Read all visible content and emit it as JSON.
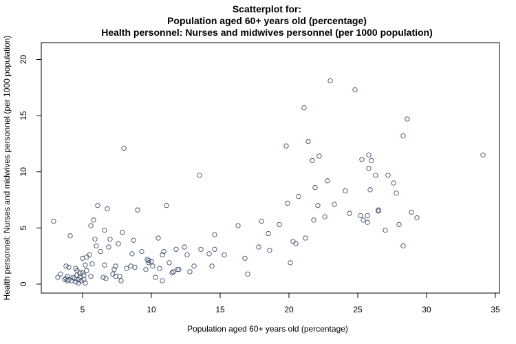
{
  "chart_data": {
    "type": "scatter",
    "title_lines": [
      "Scatterplot for:",
      "Population aged 60+ years old (percentage)",
      "Health personnel: Nurses and midwives personnel (per 1000 population)"
    ],
    "xlabel": "Population aged 60+ years old (percentage)",
    "ylabel": "Health personnel: Nurses and midwives personnel (per 1000 population)",
    "xlim": [
      2.0,
      35.3
    ],
    "ylim": [
      -0.8,
      21.5
    ],
    "xticks": [
      5,
      10,
      15,
      20,
      25,
      30,
      35
    ],
    "yticks": [
      0,
      5,
      10,
      15,
      20
    ],
    "marker_color": "#3a4a66",
    "points": [
      [
        2.9,
        5.6
      ],
      [
        3.2,
        0.6
      ],
      [
        3.4,
        0.9
      ],
      [
        3.7,
        0.4
      ],
      [
        3.8,
        0.5
      ],
      [
        3.8,
        1.6
      ],
      [
        3.9,
        0.3
      ],
      [
        3.9,
        0.7
      ],
      [
        4.0,
        1.5
      ],
      [
        4.0,
        0.4
      ],
      [
        4.1,
        4.3
      ],
      [
        4.2,
        0.3
      ],
      [
        4.3,
        0.6
      ],
      [
        4.4,
        0.5
      ],
      [
        4.5,
        1.4
      ],
      [
        4.5,
        0.2
      ],
      [
        4.6,
        1.2
      ],
      [
        4.6,
        0.8
      ],
      [
        4.7,
        0.4
      ],
      [
        4.7,
        0.1
      ],
      [
        4.8,
        1.0
      ],
      [
        4.8,
        0.6
      ],
      [
        4.9,
        0.3
      ],
      [
        5.0,
        2.3
      ],
      [
        5.0,
        1.0
      ],
      [
        5.1,
        0.8
      ],
      [
        5.1,
        0.4
      ],
      [
        5.2,
        1.7
      ],
      [
        5.2,
        0.1
      ],
      [
        5.3,
        2.4
      ],
      [
        5.3,
        1.2
      ],
      [
        5.5,
        2.6
      ],
      [
        5.6,
        0.7
      ],
      [
        5.6,
        5.2
      ],
      [
        5.7,
        1.8
      ],
      [
        5.8,
        5.7
      ],
      [
        5.9,
        4.0
      ],
      [
        6.0,
        3.4
      ],
      [
        6.1,
        7.0
      ],
      [
        6.3,
        2.9
      ],
      [
        6.5,
        0.6
      ],
      [
        6.6,
        1.7
      ],
      [
        6.6,
        4.8
      ],
      [
        6.7,
        0.5
      ],
      [
        6.8,
        6.7
      ],
      [
        6.9,
        3.3
      ],
      [
        7.0,
        4.0
      ],
      [
        7.2,
        0.9
      ],
      [
        7.3,
        1.3
      ],
      [
        7.4,
        0.7
      ],
      [
        7.4,
        1.6
      ],
      [
        7.6,
        3.6
      ],
      [
        7.7,
        0.7
      ],
      [
        7.8,
        0.3
      ],
      [
        7.9,
        4.6
      ],
      [
        8.0,
        12.1
      ],
      [
        8.2,
        1.4
      ],
      [
        8.5,
        1.6
      ],
      [
        8.6,
        2.7
      ],
      [
        8.7,
        3.9
      ],
      [
        8.8,
        1.5
      ],
      [
        9.0,
        6.6
      ],
      [
        9.3,
        2.9
      ],
      [
        9.6,
        1.3
      ],
      [
        9.7,
        2.2
      ],
      [
        9.8,
        2.1
      ],
      [
        9.8,
        1.9
      ],
      [
        10.0,
        2.0
      ],
      [
        10.1,
        1.6
      ],
      [
        10.3,
        0.6
      ],
      [
        10.5,
        4.1
      ],
      [
        10.6,
        1.4
      ],
      [
        10.8,
        2.6
      ],
      [
        10.8,
        0.3
      ],
      [
        10.9,
        2.9
      ],
      [
        11.1,
        7.0
      ],
      [
        11.3,
        1.9
      ],
      [
        11.5,
        1.0
      ],
      [
        11.6,
        1.1
      ],
      [
        11.8,
        3.1
      ],
      [
        11.9,
        1.3
      ],
      [
        12.0,
        1.3
      ],
      [
        12.4,
        3.3
      ],
      [
        12.6,
        2.6
      ],
      [
        12.8,
        1.1
      ],
      [
        13.1,
        1.6
      ],
      [
        13.5,
        9.7
      ],
      [
        13.6,
        3.1
      ],
      [
        14.2,
        2.7
      ],
      [
        14.4,
        1.6
      ],
      [
        14.6,
        4.4
      ],
      [
        14.6,
        3.1
      ],
      [
        15.3,
        2.6
      ],
      [
        16.3,
        5.2
      ],
      [
        16.8,
        2.3
      ],
      [
        17.0,
        0.9
      ],
      [
        17.8,
        3.3
      ],
      [
        18.0,
        5.6
      ],
      [
        18.5,
        4.5
      ],
      [
        18.6,
        3.0
      ],
      [
        19.3,
        5.3
      ],
      [
        19.8,
        12.3
      ],
      [
        19.9,
        7.2
      ],
      [
        20.1,
        1.9
      ],
      [
        20.3,
        3.8
      ],
      [
        20.5,
        3.6
      ],
      [
        20.7,
        7.8
      ],
      [
        21.1,
        15.7
      ],
      [
        21.2,
        4.1
      ],
      [
        21.4,
        12.7
      ],
      [
        21.7,
        11.0
      ],
      [
        21.8,
        5.7
      ],
      [
        21.9,
        8.6
      ],
      [
        22.1,
        7.0
      ],
      [
        22.2,
        11.4
      ],
      [
        22.6,
        6.0
      ],
      [
        22.8,
        9.2
      ],
      [
        23.0,
        18.1
      ],
      [
        23.3,
        7.1
      ],
      [
        24.1,
        8.3
      ],
      [
        24.4,
        6.3
      ],
      [
        24.8,
        17.3
      ],
      [
        25.2,
        6.1
      ],
      [
        25.3,
        11.1
      ],
      [
        25.4,
        5.7
      ],
      [
        25.7,
        6.1
      ],
      [
        25.7,
        5.5
      ],
      [
        25.8,
        11.5
      ],
      [
        25.8,
        10.3
      ],
      [
        25.9,
        8.4
      ],
      [
        26.0,
        11.0
      ],
      [
        26.3,
        9.7
      ],
      [
        26.5,
        6.6
      ],
      [
        26.5,
        6.5
      ],
      [
        27.0,
        4.8
      ],
      [
        27.2,
        9.7
      ],
      [
        27.6,
        9.0
      ],
      [
        27.8,
        8.1
      ],
      [
        28.0,
        5.3
      ],
      [
        28.3,
        13.2
      ],
      [
        28.3,
        3.4
      ],
      [
        28.6,
        14.7
      ],
      [
        28.9,
        6.4
      ],
      [
        29.3,
        5.9
      ],
      [
        34.1,
        11.5
      ]
    ]
  }
}
